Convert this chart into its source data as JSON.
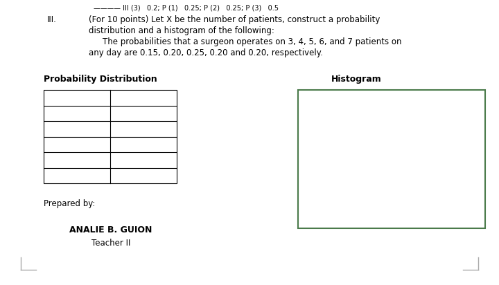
{
  "background_color": "#ffffff",
  "roman_numeral": "III.",
  "problem_text_line1": "(For 10 points) Let X be the number of patients, construct a probability",
  "problem_text_line2": "distribution and a histogram of the following:",
  "problem_text_line3": "The probabilities that a surgeon operates on 3, 4, 5, 6, and 7 patients on",
  "problem_text_line4": "any day are 0.15, 0.20, 0.25, 0.20 and 0.20, respectively.",
  "prob_dist_title": "Probability Distribution",
  "histogram_title": "Histogram",
  "hist_border_color": "#4a7a4a",
  "prepared_by_text": "Prepared by:",
  "name_text": "ANALIE B. GUION",
  "title_text": "Teacher II",
  "corner_bracket_color": "#aaaaaa",
  "top_line_text": "———— III (3)   0.2; P (1)   0.25; P (2)   0.25; P (3)   0.5",
  "table_rows": 6,
  "table_cols": 2,
  "font_size_body": 8.5,
  "font_size_title": 9.0
}
